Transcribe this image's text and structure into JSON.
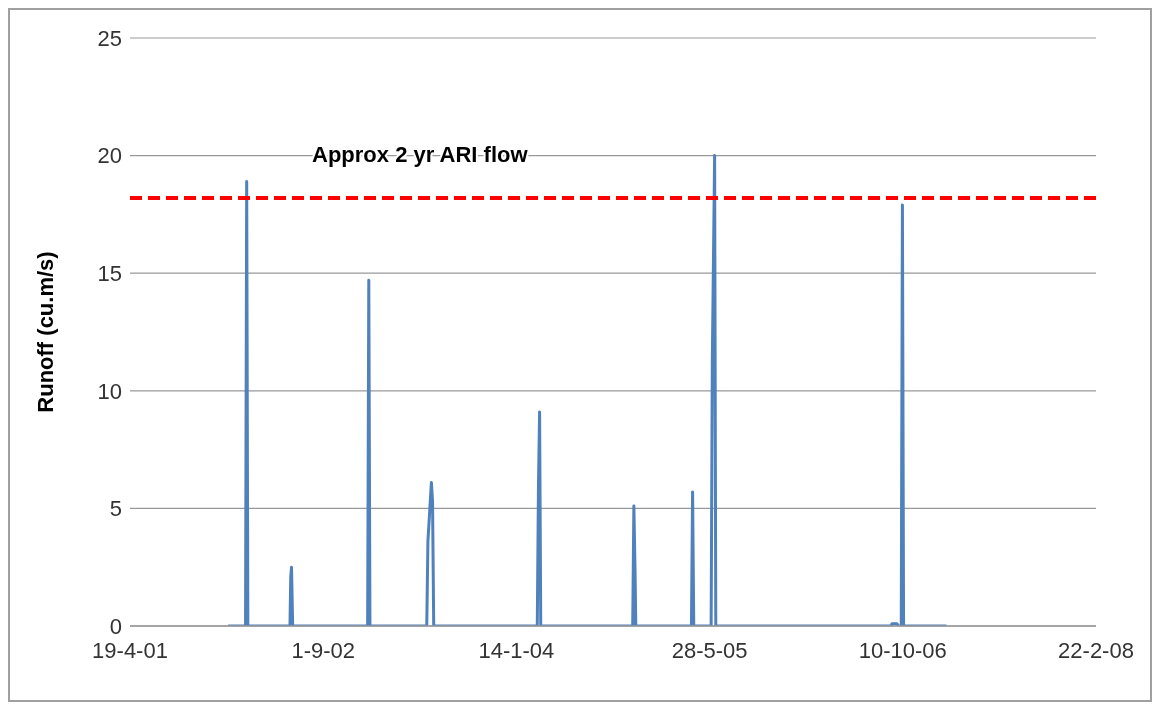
{
  "chart_data": {
    "type": "line",
    "ylabel": "Runoff (cu.m/s)",
    "x": [
      "2001-12-29",
      "2002-02-12",
      "2002-02-15",
      "2002-02-18",
      "2002-06-07",
      "2002-06-09",
      "2002-06-11",
      "2002-06-14",
      "2002-12-25",
      "2002-12-28",
      "2002-12-31",
      "2003-05-27",
      "2003-05-30",
      "2003-06-08",
      "2003-06-11",
      "2003-06-14",
      "2004-03-08",
      "2004-03-11",
      "2004-03-14",
      "2004-03-17",
      "2004-11-10",
      "2004-11-13",
      "2004-11-16",
      "2004-11-18",
      "2005-04-11",
      "2005-04-14",
      "2005-04-17",
      "2005-06-01",
      "2005-06-04",
      "2005-06-10",
      "2005-06-13",
      "2006-09-10",
      "2006-09-12",
      "2006-09-25",
      "2006-09-28",
      "2006-10-06",
      "2006-10-09",
      "2006-10-12",
      "2007-01-31"
    ],
    "series": [
      {
        "color": "#4f81bd",
        "values": [
          0,
          0,
          18.9,
          0,
          0,
          2.1,
          2.5,
          0,
          0,
          14.7,
          0,
          0,
          3.6,
          6.1,
          5.3,
          0,
          0,
          5.8,
          9.1,
          0,
          0,
          5.1,
          2.4,
          0,
          0,
          5.7,
          0,
          0,
          11.2,
          20.0,
          0,
          0,
          0.1,
          0.1,
          0,
          0,
          17.9,
          0,
          0
        ]
      }
    ],
    "xlim": [
      "2001-04-19",
      "2008-02-22"
    ],
    "xticks": [
      {
        "value": "2001-04-19",
        "label": "19-4-01"
      },
      {
        "value": "2002-09-01",
        "label": "1-9-02"
      },
      {
        "value": "2004-01-14",
        "label": "14-1-04"
      },
      {
        "value": "2005-05-28",
        "label": "28-5-05"
      },
      {
        "value": "2006-10-10",
        "label": "10-10-06"
      },
      {
        "value": "2008-02-22",
        "label": "22-2-08"
      }
    ],
    "ylim": [
      0,
      25
    ],
    "yticks": [
      0,
      5,
      10,
      15,
      20,
      25
    ],
    "grid": "y",
    "marker": "none",
    "line_style": "solid",
    "legend": false,
    "ref_lines": [
      {
        "axis": "y",
        "value": 18.2,
        "label": "Approx 2 yr ARI flow",
        "color": "#ff0000",
        "line_style": "dashed"
      }
    ]
  }
}
